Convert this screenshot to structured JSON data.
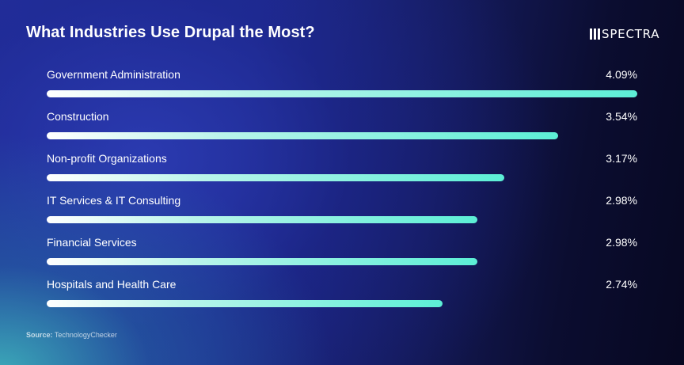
{
  "title": "What Industries Use Drupal the Most?",
  "logo": {
    "text": "SPECTRA",
    "icon": "bars-logo-icon"
  },
  "source": {
    "label": "Source:",
    "text": "TechnologyChecker"
  },
  "colors": {
    "bar_start": "#ffffff",
    "bar_end": "#5cefd6",
    "background_dark": "#070821",
    "background_blue": "#23309a"
  },
  "chart_data": {
    "type": "bar",
    "orientation": "horizontal",
    "title": "What Industries Use Drupal the Most?",
    "categories": [
      "Government Administration",
      "Construction",
      "Non-profit Organizations",
      "IT Services & IT Consulting",
      "Financial Services",
      "Hospitals and Health Care"
    ],
    "values": [
      4.09,
      3.54,
      3.17,
      2.98,
      2.98,
      2.74
    ],
    "value_labels": [
      "4.09%",
      "3.54%",
      "3.17%",
      "2.98%",
      "2.98%",
      "2.74%"
    ],
    "unit": "%",
    "xlim": [
      0,
      4.09
    ],
    "grid": false,
    "legend": "none"
  }
}
